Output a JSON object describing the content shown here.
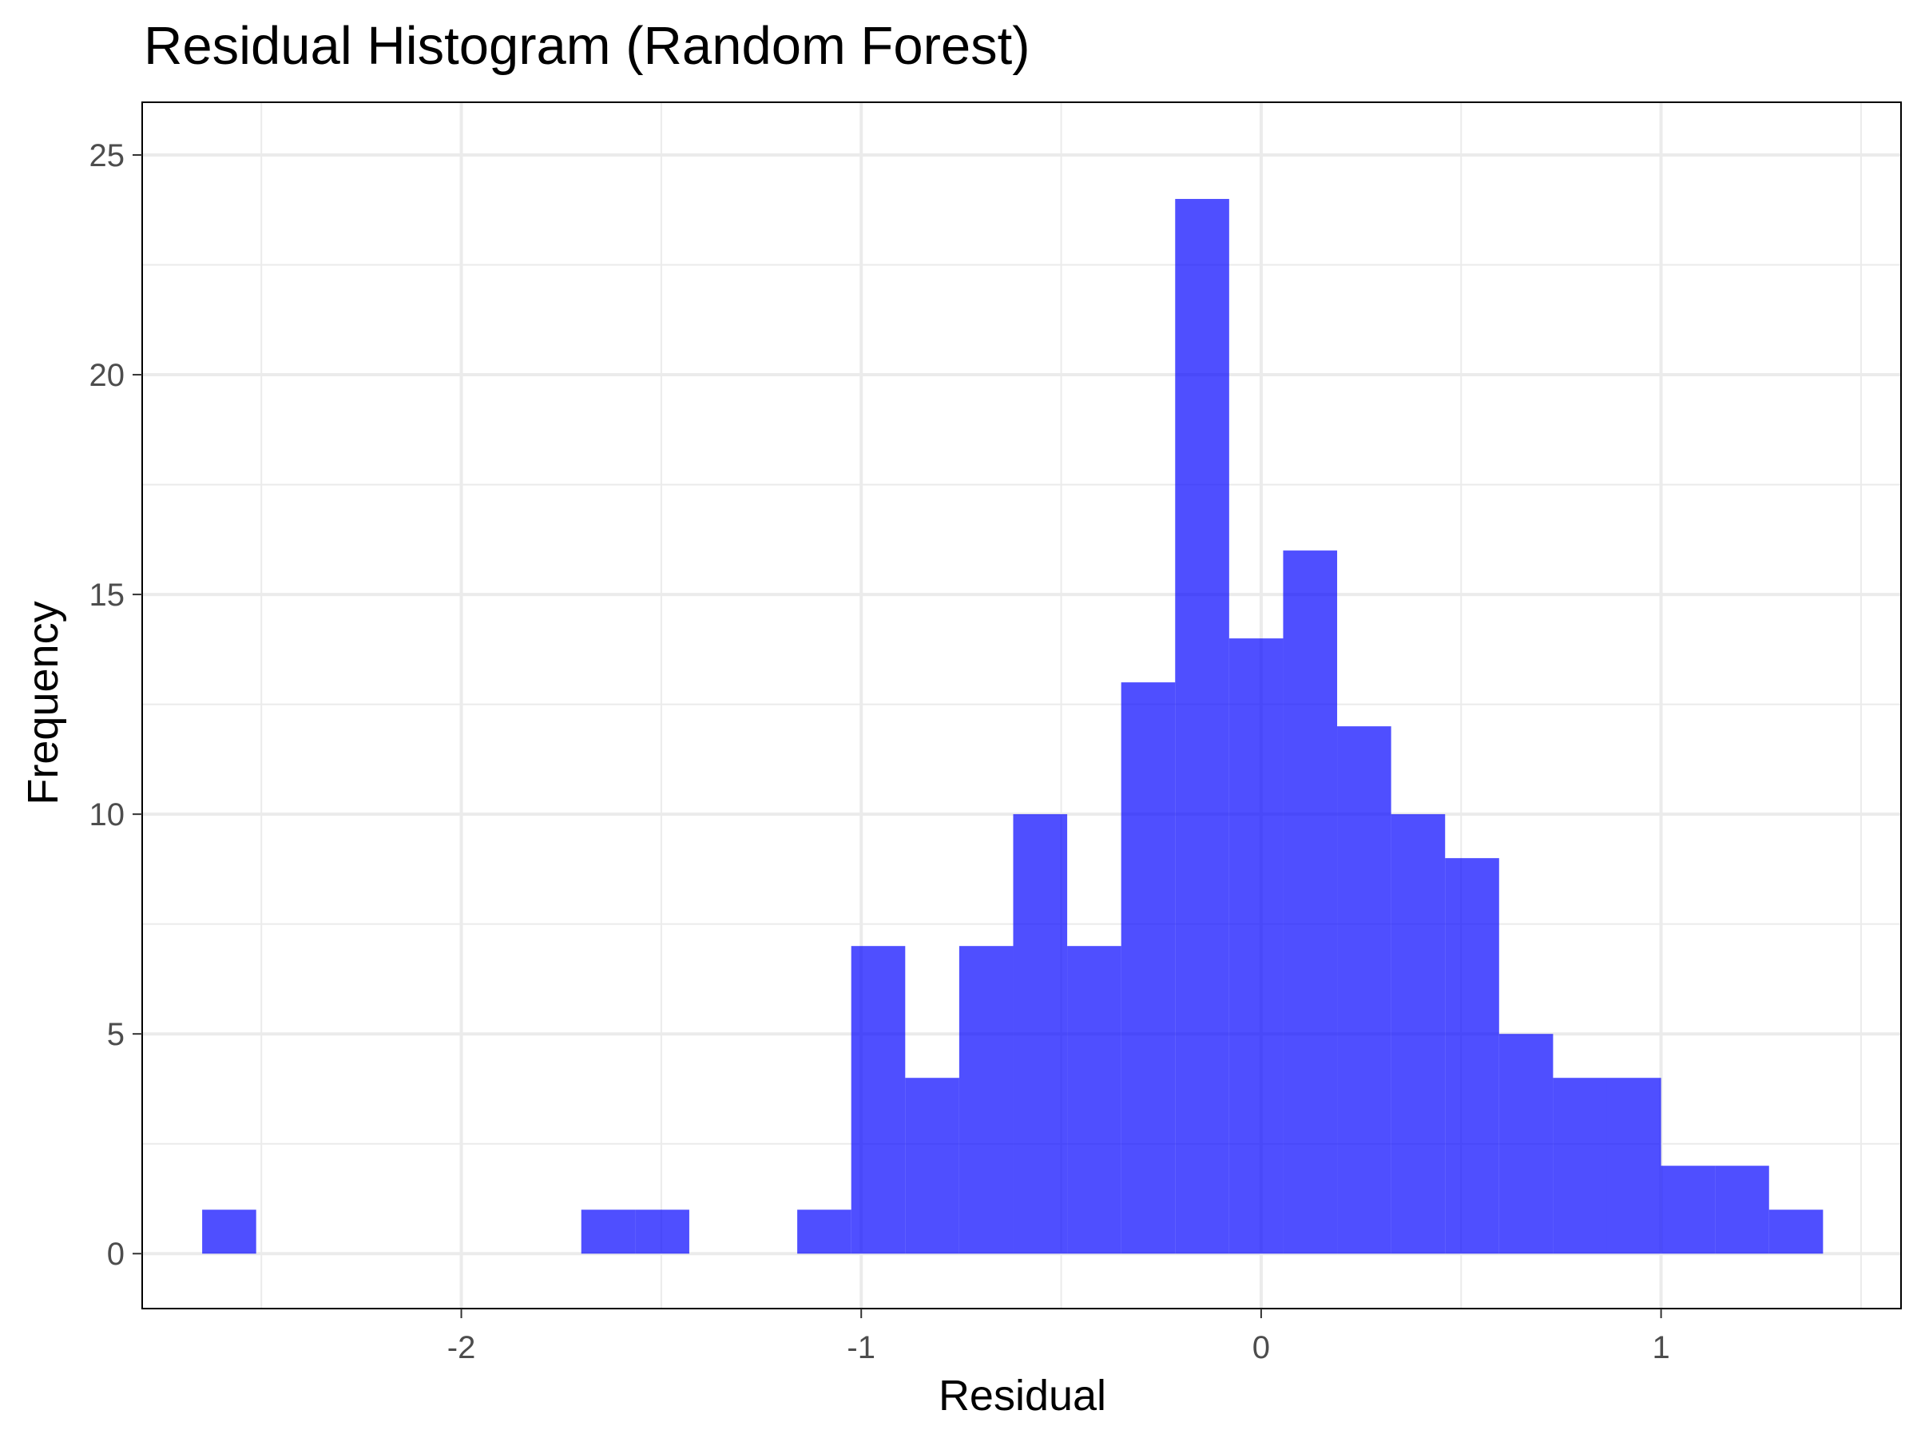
{
  "chart_data": {
    "type": "bar",
    "title": "Residual Histogram (Random Forest)",
    "xlabel": "Residual",
    "ylabel": "Frequency",
    "xlim": [
      -2.798,
      1.6
    ],
    "ylim": [
      -1.25,
      26.2
    ],
    "x_ticks": [
      -2,
      -1,
      0,
      1
    ],
    "x_tick_labels": [
      "-2",
      "-1",
      "0",
      "1"
    ],
    "y_ticks": [
      0,
      5,
      10,
      15,
      20,
      25
    ],
    "y_tick_labels": [
      "0",
      "5",
      "10",
      "15",
      "20",
      "25"
    ],
    "bin_width": 0.135,
    "bins": [
      {
        "x0": -2.648,
        "x1": -2.513,
        "count": 1
      },
      {
        "x0": -1.7,
        "x1": -1.565,
        "count": 1
      },
      {
        "x0": -1.565,
        "x1": -1.43,
        "count": 1
      },
      {
        "x0": -1.16,
        "x1": -1.025,
        "count": 1
      },
      {
        "x0": -1.025,
        "x1": -0.89,
        "count": 7
      },
      {
        "x0": -0.89,
        "x1": -0.755,
        "count": 4
      },
      {
        "x0": -0.755,
        "x1": -0.62,
        "count": 7
      },
      {
        "x0": -0.62,
        "x1": -0.485,
        "count": 10
      },
      {
        "x0": -0.485,
        "x1": -0.35,
        "count": 7
      },
      {
        "x0": -0.35,
        "x1": -0.215,
        "count": 13
      },
      {
        "x0": -0.215,
        "x1": -0.08,
        "count": 24
      },
      {
        "x0": -0.08,
        "x1": 0.055,
        "count": 14
      },
      {
        "x0": 0.055,
        "x1": 0.19,
        "count": 16
      },
      {
        "x0": 0.19,
        "x1": 0.325,
        "count": 12
      },
      {
        "x0": 0.325,
        "x1": 0.46,
        "count": 10
      },
      {
        "x0": 0.46,
        "x1": 0.595,
        "count": 9
      },
      {
        "x0": 0.595,
        "x1": 0.73,
        "count": 5
      },
      {
        "x0": 0.73,
        "x1": 0.865,
        "count": 4
      },
      {
        "x0": 0.865,
        "x1": 1.0,
        "count": 4
      },
      {
        "x0": 1.0,
        "x1": 1.135,
        "count": 2
      },
      {
        "x0": 1.135,
        "x1": 1.27,
        "count": 2
      },
      {
        "x0": 1.27,
        "x1": 1.405,
        "count": 1
      }
    ],
    "bar_color": "#0000ff",
    "bar_opacity": 0.69,
    "grid": true,
    "legend": "none"
  }
}
